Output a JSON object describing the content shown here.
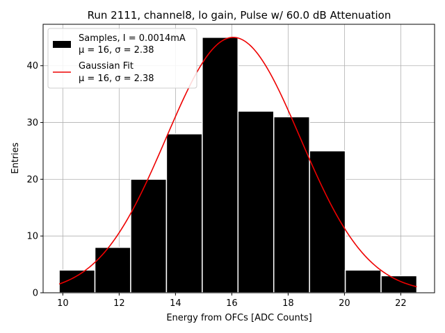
{
  "chart_data": {
    "type": "bar",
    "title": "Run 2111, channel8, lo gain, Pulse w/ 60.0 dB Attenuation",
    "xlabel": "Energy from OFCs [ADC Counts]",
    "ylabel": "Entries",
    "xlim": [
      9.3,
      23.2
    ],
    "ylim": [
      0,
      47.3
    ],
    "xticks": [
      10,
      12,
      14,
      16,
      18,
      20,
      22
    ],
    "yticks": [
      0,
      10,
      20,
      30,
      40
    ],
    "grid": true,
    "bar_color": "#000000",
    "bar_edge_color": "#ffffff",
    "fit_color": "#ee0000",
    "bins": [
      {
        "left": 9.87,
        "right": 11.14,
        "count": 4
      },
      {
        "left": 11.14,
        "right": 12.41,
        "count": 8
      },
      {
        "left": 12.41,
        "right": 13.68,
        "count": 20
      },
      {
        "left": 13.68,
        "right": 14.95,
        "count": 28
      },
      {
        "left": 14.95,
        "right": 16.22,
        "count": 45
      },
      {
        "left": 16.22,
        "right": 17.49,
        "count": 32
      },
      {
        "left": 17.49,
        "right": 18.76,
        "count": 31
      },
      {
        "left": 18.76,
        "right": 20.03,
        "count": 25
      },
      {
        "left": 20.03,
        "right": 21.3,
        "count": 4
      },
      {
        "left": 21.3,
        "right": 22.57,
        "count": 3
      }
    ],
    "fit": {
      "type": "gaussian",
      "amplitude": 45,
      "mu": 16.05,
      "sigma": 2.38,
      "x_range": [
        9.87,
        22.57
      ]
    },
    "legend": {
      "position": "top-left",
      "entries": [
        {
          "label": "Samples, I = 0.0014mA",
          "sublabel": "μ = 16, σ = 2.38",
          "kind": "bar"
        },
        {
          "label": "Gaussian Fit",
          "sublabel": "μ = 16, σ = 2.38",
          "kind": "line"
        }
      ]
    }
  }
}
